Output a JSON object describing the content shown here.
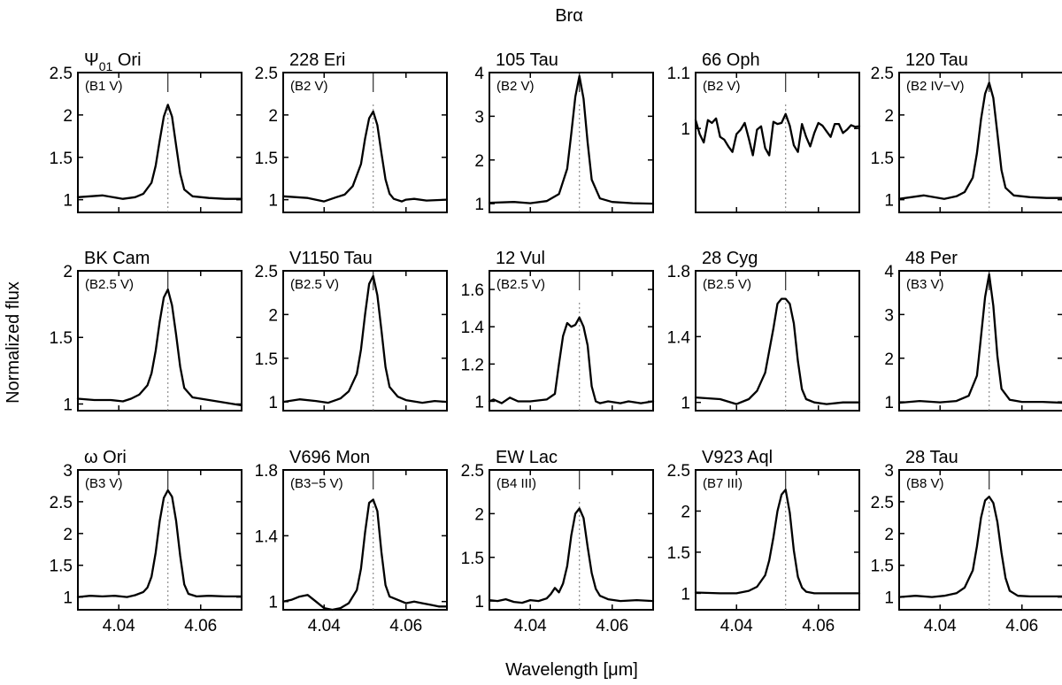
{
  "chart_data": {
    "type": "line",
    "title": "Brα",
    "xlabel": "Wavelength [μm]",
    "ylabel": "Normalized flux",
    "xlim": [
      4.03,
      4.07
    ],
    "xticks": [
      4.04,
      4.06
    ],
    "xtick_labels": [
      "4.04",
      "4.06"
    ],
    "rest_wavelength": 4.052,
    "panels": [
      {
        "star": "Ψ01 Ori",
        "star_main": "Ψ",
        "star_sub": "01",
        "star_rest": " Ori",
        "sptype": "(B1 V)",
        "ylim": [
          0.85,
          2.5
        ],
        "yticks": [
          1,
          1.5,
          2,
          2.5
        ],
        "ytick_labels": [
          "1",
          "1.5",
          "2",
          "2.5"
        ],
        "x": [
          4.03,
          4.036,
          4.041,
          4.044,
          4.046,
          4.048,
          4.049,
          4.05,
          4.051,
          4.052,
          4.053,
          4.054,
          4.055,
          4.056,
          4.058,
          4.062,
          4.066,
          4.07
        ],
        "y": [
          1.03,
          1.05,
          1.01,
          1.03,
          1.07,
          1.2,
          1.4,
          1.7,
          1.98,
          2.12,
          1.98,
          1.64,
          1.31,
          1.12,
          1.04,
          1.02,
          1.01,
          1.01
        ]
      },
      {
        "star": "228 Eri",
        "sptype": "(B2 V)",
        "ylim": [
          0.85,
          2.5
        ],
        "yticks": [
          1,
          1.5,
          2,
          2.5
        ],
        "ytick_labels": [
          "1",
          "1.5",
          "2",
          "2.5"
        ],
        "x": [
          4.03,
          4.036,
          4.04,
          4.043,
          4.045,
          4.047,
          4.049,
          4.05,
          4.051,
          4.052,
          4.053,
          4.054,
          4.055,
          4.056,
          4.057,
          4.059,
          4.06,
          4.062,
          4.065,
          4.07
        ],
        "y": [
          1.04,
          1.02,
          0.98,
          1.03,
          1.06,
          1.16,
          1.42,
          1.72,
          1.96,
          2.04,
          1.88,
          1.55,
          1.24,
          1.07,
          1.01,
          0.98,
          1.0,
          1.01,
          0.99,
          1.0
        ]
      },
      {
        "star": "105 Tau",
        "sptype": "(B2 V)",
        "ylim": [
          0.8,
          4.0
        ],
        "yticks": [
          1,
          2,
          3,
          4
        ],
        "ytick_labels": [
          "1",
          "2",
          "3",
          "4"
        ],
        "x": [
          4.03,
          4.036,
          4.04,
          4.044,
          4.047,
          4.049,
          4.05,
          4.051,
          4.052,
          4.053,
          4.054,
          4.055,
          4.057,
          4.06,
          4.065,
          4.07
        ],
        "y": [
          1.02,
          1.04,
          1.01,
          1.06,
          1.22,
          1.8,
          2.6,
          3.45,
          3.92,
          3.4,
          2.4,
          1.55,
          1.12,
          1.04,
          1.01,
          1.0
        ]
      },
      {
        "star": "66 Oph",
        "sptype": "(B2 V)",
        "ylim": [
          0.85,
          1.1
        ],
        "yticks": [
          1,
          1.1
        ],
        "ytick_labels": [
          "1",
          "1.1"
        ],
        "x": [
          4.03,
          4.031,
          4.032,
          4.033,
          4.034,
          4.035,
          4.036,
          4.037,
          4.038,
          4.039,
          4.04,
          4.041,
          4.042,
          4.043,
          4.044,
          4.045,
          4.046,
          4.047,
          4.048,
          4.049,
          4.05,
          4.051,
          4.052,
          4.053,
          4.054,
          4.055,
          4.056,
          4.057,
          4.058,
          4.059,
          4.06,
          4.061,
          4.062,
          4.063,
          4.064,
          4.065,
          4.066,
          4.067,
          4.068,
          4.069,
          4.07
        ],
        "y": [
          1.015,
          0.99,
          0.975,
          1.015,
          1.01,
          1.018,
          0.985,
          0.98,
          0.968,
          0.958,
          0.99,
          0.998,
          1.01,
          0.982,
          0.952,
          0.998,
          1.004,
          0.965,
          0.952,
          1.012,
          1.008,
          1.01,
          1.026,
          1.005,
          0.97,
          0.958,
          1.008,
          0.985,
          0.968,
          0.992,
          1.01,
          1.005,
          0.995,
          0.985,
          1.008,
          1.008,
          0.992,
          0.998,
          1.006,
          1.003,
          1.004
        ]
      },
      {
        "star": "120 Tau",
        "sptype": "(B2 IV−V)",
        "ylim": [
          0.85,
          2.5
        ],
        "yticks": [
          1,
          1.5,
          2,
          2.5
        ],
        "ytick_labels": [
          "1",
          "1.5",
          "2",
          "2.5"
        ],
        "x": [
          4.03,
          4.036,
          4.041,
          4.044,
          4.046,
          4.048,
          4.049,
          4.05,
          4.051,
          4.052,
          4.053,
          4.054,
          4.055,
          4.056,
          4.058,
          4.062,
          4.066,
          4.07
        ],
        "y": [
          1.01,
          1.05,
          1.01,
          1.04,
          1.09,
          1.26,
          1.55,
          1.95,
          2.25,
          2.38,
          2.2,
          1.78,
          1.35,
          1.14,
          1.05,
          1.03,
          1.02,
          1.02
        ]
      },
      {
        "star": "BK Cam",
        "sptype": "(B2.5 V)",
        "ylim": [
          0.95,
          2.0
        ],
        "yticks": [
          1,
          1.5,
          2
        ],
        "ytick_labels": [
          "1",
          "1.5",
          "2"
        ],
        "x": [
          4.03,
          4.034,
          4.038,
          4.041,
          4.043,
          4.045,
          4.047,
          4.048,
          4.049,
          4.05,
          4.051,
          4.052,
          4.053,
          4.054,
          4.055,
          4.056,
          4.058,
          4.062,
          4.066,
          4.07
        ],
        "y": [
          1.04,
          1.03,
          1.03,
          1.02,
          1.04,
          1.07,
          1.14,
          1.23,
          1.4,
          1.62,
          1.8,
          1.86,
          1.74,
          1.52,
          1.28,
          1.12,
          1.05,
          1.03,
          1.01,
          0.99
        ]
      },
      {
        "star": "V1150 Tau",
        "sptype": "(B2.5 V)",
        "ylim": [
          0.9,
          2.5
        ],
        "yticks": [
          1,
          1.5,
          2,
          2.5
        ],
        "ytick_labels": [
          "1",
          "1.5",
          "2",
          "2.5"
        ],
        "x": [
          4.03,
          4.034,
          4.038,
          4.041,
          4.044,
          4.046,
          4.048,
          4.049,
          4.05,
          4.051,
          4.052,
          4.053,
          4.054,
          4.055,
          4.056,
          4.058,
          4.06,
          4.064,
          4.067,
          4.07
        ],
        "y": [
          1.0,
          1.03,
          1.01,
          0.99,
          1.04,
          1.12,
          1.32,
          1.6,
          2.0,
          2.35,
          2.44,
          2.22,
          1.82,
          1.4,
          1.17,
          1.06,
          1.02,
          0.99,
          1.01,
          1.0
        ]
      },
      {
        "star": "12 Vul",
        "sptype": "(B2.5 V)",
        "ylim": [
          0.95,
          1.7
        ],
        "yticks": [
          1,
          1.2,
          1.4,
          1.6
        ],
        "ytick_labels": [
          "1",
          "1.2",
          "1.4",
          "1.6"
        ],
        "x": [
          4.03,
          4.031,
          4.033,
          4.035,
          4.037,
          4.04,
          4.044,
          4.046,
          4.047,
          4.048,
          4.049,
          4.05,
          4.051,
          4.052,
          4.053,
          4.054,
          4.055,
          4.056,
          4.057,
          4.059,
          4.062,
          4.064,
          4.067,
          4.07
        ],
        "y": [
          1.0,
          1.01,
          0.99,
          1.02,
          1.0,
          1.0,
          1.01,
          1.04,
          1.2,
          1.35,
          1.42,
          1.4,
          1.41,
          1.45,
          1.4,
          1.3,
          1.08,
          1.0,
          0.99,
          1.0,
          0.99,
          1.0,
          0.99,
          1.0
        ]
      },
      {
        "star": "28 Cyg",
        "sptype": "(B2.5 V)",
        "ylim": [
          0.95,
          1.8
        ],
        "yticks": [
          1,
          1.4,
          1.8
        ],
        "ytick_labels": [
          "1",
          "1.4",
          "1.8"
        ],
        "x": [
          4.03,
          4.036,
          4.04,
          4.043,
          4.045,
          4.047,
          4.049,
          4.05,
          4.051,
          4.052,
          4.053,
          4.054,
          4.055,
          4.056,
          4.057,
          4.059,
          4.062,
          4.066,
          4.07
        ],
        "y": [
          1.03,
          1.02,
          0.99,
          1.02,
          1.07,
          1.18,
          1.45,
          1.6,
          1.63,
          1.63,
          1.6,
          1.48,
          1.25,
          1.08,
          1.02,
          1.0,
          0.99,
          1.0,
          1.0
        ]
      },
      {
        "star": "48 Per",
        "sptype": "(B3 V)",
        "ylim": [
          0.8,
          4.0
        ],
        "yticks": [
          1,
          2,
          3,
          4
        ],
        "ytick_labels": [
          "1",
          "2",
          "3",
          "4"
        ],
        "x": [
          4.03,
          4.035,
          4.04,
          4.044,
          4.047,
          4.049,
          4.05,
          4.051,
          4.052,
          4.053,
          4.054,
          4.055,
          4.057,
          4.06,
          4.065,
          4.07
        ],
        "y": [
          0.98,
          1.02,
          0.99,
          1.02,
          1.14,
          1.6,
          2.5,
          3.4,
          3.92,
          3.2,
          2.05,
          1.3,
          1.05,
          1.0,
          1.0,
          0.98
        ]
      },
      {
        "star": "ω Ori",
        "sptype": "(B3 V)",
        "ylim": [
          0.8,
          3.0
        ],
        "yticks": [
          1,
          1.5,
          2,
          2.5,
          3
        ],
        "ytick_labels": [
          "1",
          "1.5",
          "2",
          "2.5",
          "3"
        ],
        "x": [
          4.03,
          4.033,
          4.036,
          4.039,
          4.042,
          4.044,
          4.046,
          4.047,
          4.048,
          4.049,
          4.05,
          4.051,
          4.052,
          4.053,
          4.054,
          4.055,
          4.056,
          4.057,
          4.059,
          4.062,
          4.066,
          4.07
        ],
        "y": [
          1.0,
          1.02,
          1.01,
          1.02,
          1.0,
          1.03,
          1.08,
          1.15,
          1.32,
          1.7,
          2.2,
          2.56,
          2.68,
          2.58,
          2.2,
          1.65,
          1.2,
          1.05,
          1.01,
          1.02,
          1.01,
          1.01
        ]
      },
      {
        "star": "V696 Mon",
        "sptype": "(B3−5 V)",
        "ylim": [
          0.95,
          1.8
        ],
        "yticks": [
          1,
          1.4,
          1.8
        ],
        "ytick_labels": [
          "1",
          "1.4",
          "1.8"
        ],
        "x": [
          4.03,
          4.032,
          4.034,
          4.036,
          4.038,
          4.04,
          4.042,
          4.044,
          4.046,
          4.048,
          4.049,
          4.05,
          4.051,
          4.052,
          4.053,
          4.054,
          4.055,
          4.056,
          4.058,
          4.06,
          4.062,
          4.064,
          4.066,
          4.068,
          4.07
        ],
        "y": [
          1.0,
          1.01,
          1.03,
          1.04,
          1.0,
          0.96,
          0.95,
          0.96,
          0.99,
          1.07,
          1.2,
          1.42,
          1.6,
          1.62,
          1.55,
          1.3,
          1.1,
          1.03,
          1.01,
          0.99,
          1.0,
          0.99,
          0.98,
          0.97,
          0.97
        ]
      },
      {
        "star": "EW Lac",
        "sptype": "(B4 III)",
        "ylim": [
          0.9,
          2.5
        ],
        "yticks": [
          1,
          1.5,
          2,
          2.5
        ],
        "ytick_labels": [
          "1",
          "1.5",
          "2",
          "2.5"
        ],
        "x": [
          4.03,
          4.032,
          4.034,
          4.036,
          4.038,
          4.04,
          4.042,
          4.044,
          4.045,
          4.046,
          4.047,
          4.048,
          4.049,
          4.05,
          4.051,
          4.052,
          4.053,
          4.054,
          4.055,
          4.056,
          4.057,
          4.059,
          4.062,
          4.066,
          4.07
        ],
        "y": [
          1.01,
          1.0,
          1.02,
          0.99,
          0.98,
          1.01,
          1.0,
          1.03,
          1.08,
          1.15,
          1.1,
          1.2,
          1.4,
          1.75,
          2.0,
          2.06,
          1.95,
          1.62,
          1.32,
          1.14,
          1.06,
          1.02,
          1.0,
          1.01,
          1.0
        ]
      },
      {
        "star": "V923 Aql",
        "sptype": "(B7 III)",
        "ylim": [
          0.8,
          2.5
        ],
        "yticks": [
          1,
          1.5,
          2,
          2.5
        ],
        "ytick_labels": [
          "1",
          "1.5",
          "2",
          "2.5"
        ],
        "x": [
          4.03,
          4.036,
          4.04,
          4.043,
          4.045,
          4.047,
          4.048,
          4.049,
          4.05,
          4.051,
          4.052,
          4.053,
          4.054,
          4.055,
          4.056,
          4.057,
          4.059,
          4.062,
          4.066,
          4.07
        ],
        "y": [
          1.01,
          1.0,
          1.0,
          1.03,
          1.08,
          1.22,
          1.4,
          1.68,
          2.0,
          2.2,
          2.26,
          1.98,
          1.52,
          1.2,
          1.07,
          1.02,
          1.0,
          1.0,
          1.0,
          1.0
        ]
      },
      {
        "star": "28 Tau",
        "sptype": "(B8 V)",
        "ylim": [
          0.8,
          3.0
        ],
        "yticks": [
          1,
          1.5,
          2,
          2.5,
          3
        ],
        "ytick_labels": [
          "1",
          "1.5",
          "2",
          "2.5",
          "3"
        ],
        "x": [
          4.03,
          4.034,
          4.038,
          4.041,
          4.044,
          4.046,
          4.048,
          4.049,
          4.05,
          4.051,
          4.052,
          4.053,
          4.054,
          4.055,
          4.056,
          4.057,
          4.059,
          4.062,
          4.066,
          4.07
        ],
        "y": [
          1.0,
          1.02,
          1.0,
          1.02,
          1.06,
          1.15,
          1.42,
          1.8,
          2.25,
          2.52,
          2.58,
          2.48,
          2.18,
          1.7,
          1.3,
          1.1,
          1.02,
          1.01,
          1.01,
          1.01
        ]
      }
    ]
  }
}
